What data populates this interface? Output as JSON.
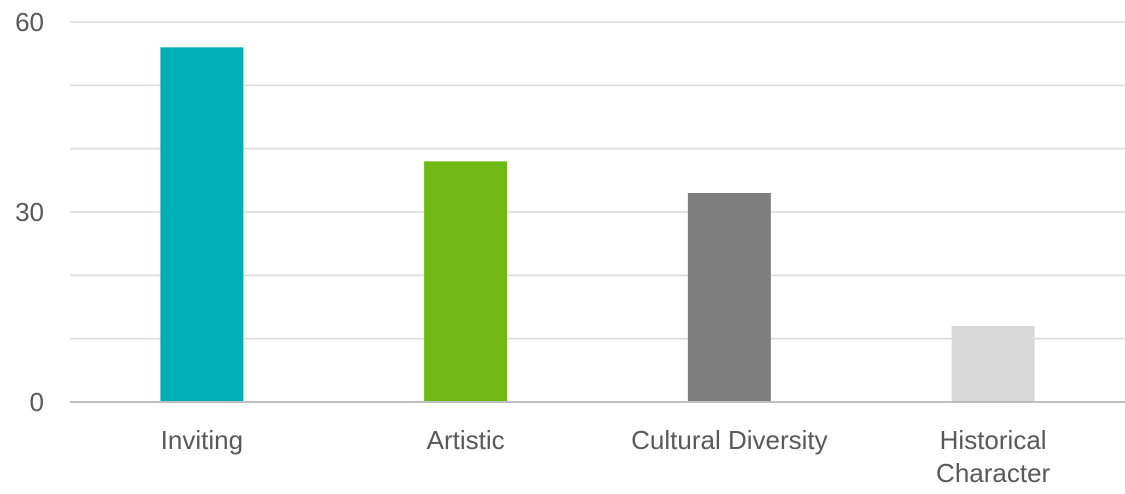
{
  "chart_data": {
    "type": "bar",
    "title": "",
    "xlabel": "",
    "ylabel": "",
    "categories": [
      "Inviting",
      "Artistic",
      "Cultural Diversity",
      "Historical Character"
    ],
    "category_label_lines": [
      [
        "Inviting"
      ],
      [
        "Artistic"
      ],
      [
        "Cultural Diversity"
      ],
      [
        "Historical",
        "Character"
      ]
    ],
    "values": [
      56,
      38,
      33,
      12
    ],
    "colors": [
      "#00aeb5",
      "#70b915",
      "#7f7f7f",
      "#d9d9d9"
    ],
    "ylim": [
      0,
      60
    ],
    "yticks": [
      0,
      30,
      60
    ],
    "minor_gridlines": [
      10,
      20,
      40,
      50
    ],
    "grid": true,
    "legend": "none"
  }
}
